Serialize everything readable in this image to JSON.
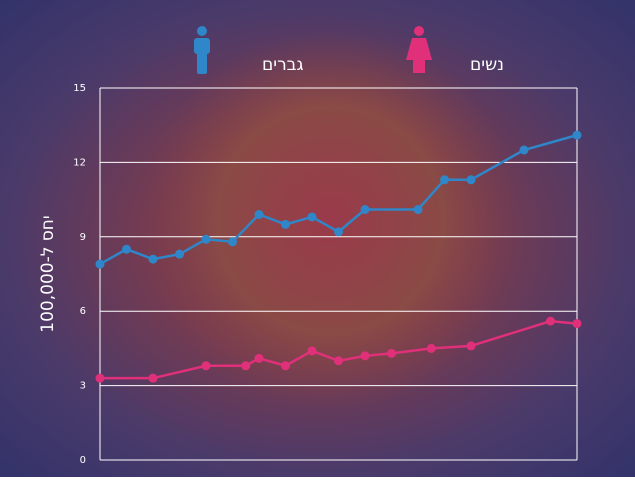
{
  "chart_data": {
    "type": "line",
    "ylabel": "יחס ל-100,000",
    "xlim": [
      1976,
      2012
    ],
    "ylim": [
      0,
      15
    ],
    "yticks": [
      0,
      3,
      6,
      9,
      12,
      15
    ],
    "grid": true,
    "series": [
      {
        "name": "גברים",
        "color": "#2f86c8",
        "x": [
          1976,
          1978,
          1980,
          1982,
          1984,
          1986,
          1988,
          1990,
          1992,
          1994,
          1996,
          2000,
          2002,
          2004,
          2008,
          2012
        ],
        "values": [
          7.9,
          8.5,
          8.1,
          8.3,
          8.9,
          8.8,
          9.9,
          9.5,
          9.8,
          9.2,
          10.1,
          10.1,
          11.3,
          11.3,
          12.5,
          13.1
        ]
      },
      {
        "name": "נשים",
        "color": "#e0307a",
        "x": [
          1976,
          1980,
          1984,
          1987,
          1988,
          1990,
          1992,
          1994,
          1996,
          1998,
          2001,
          2004,
          2010,
          2012
        ],
        "values": [
          3.3,
          3.3,
          3.8,
          3.8,
          4.1,
          3.8,
          4.4,
          4.0,
          4.2,
          4.3,
          4.5,
          4.6,
          5.6,
          5.5
        ]
      }
    ]
  }
}
